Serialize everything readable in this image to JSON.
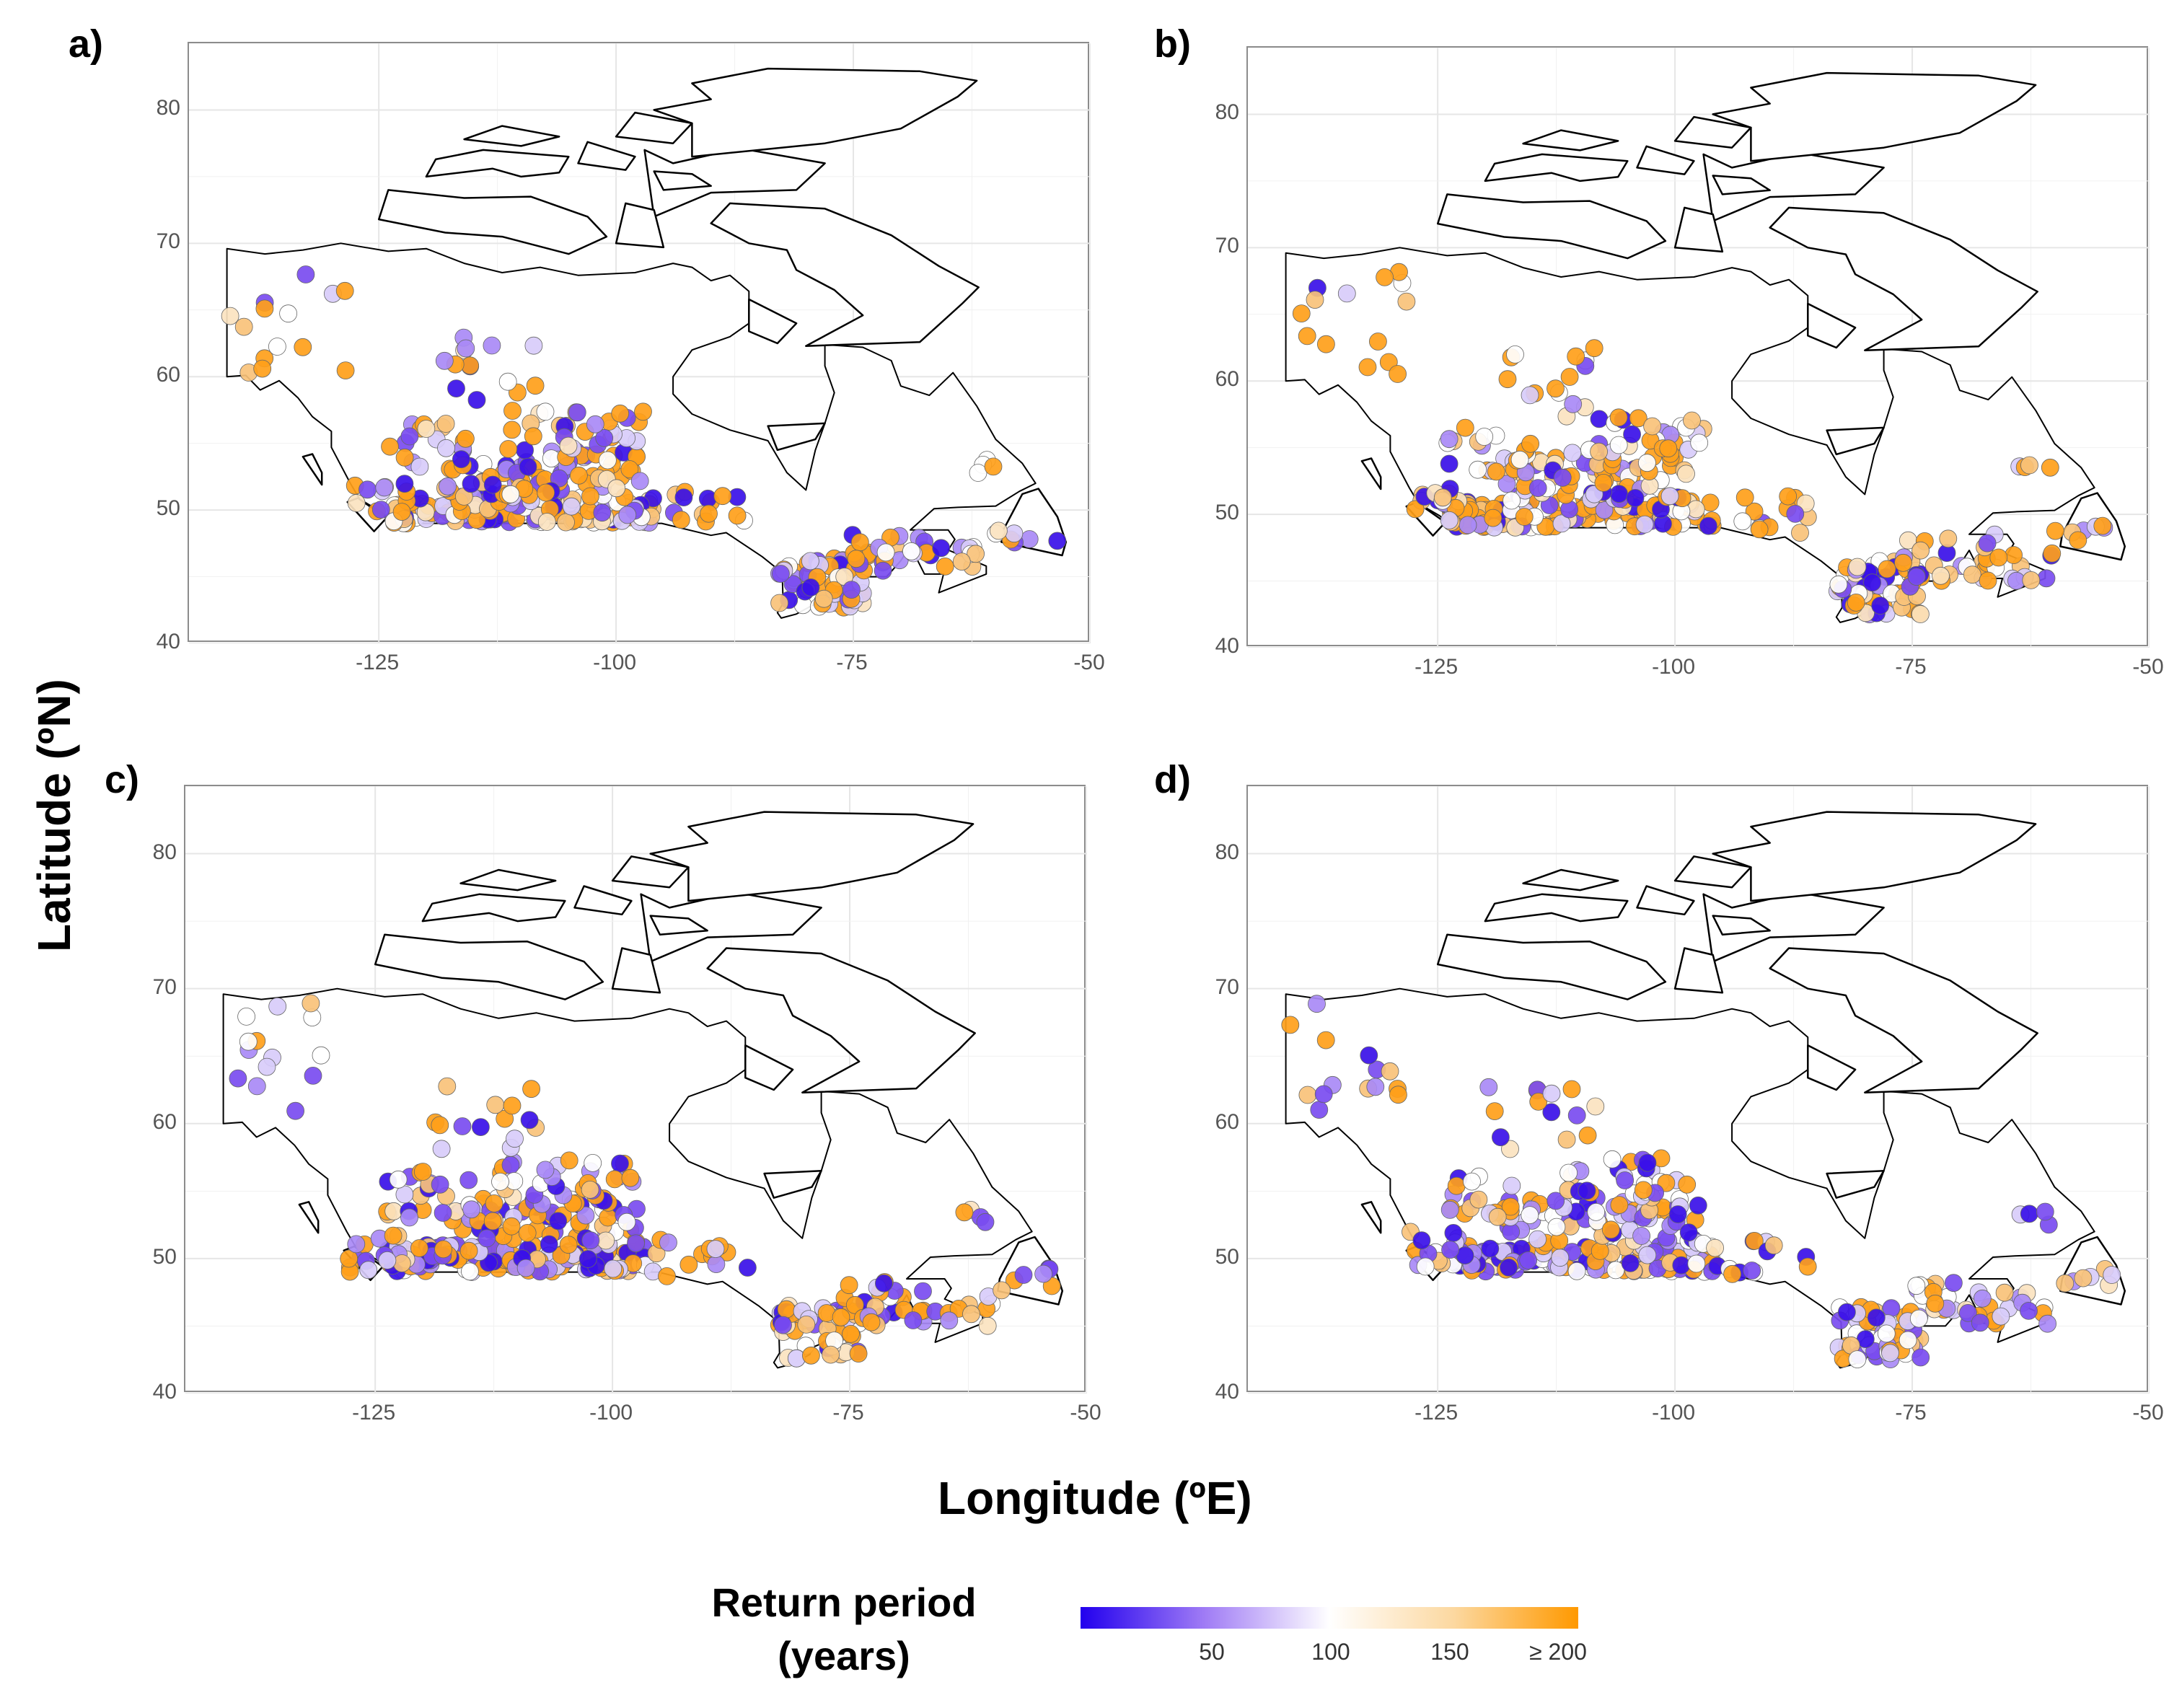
{
  "axes": {
    "y_title": "Latitude (ºN)",
    "x_title": "Longitude (ºE)",
    "lat_ticks": [
      "80",
      "70",
      "60",
      "50",
      "40"
    ],
    "lon_ticks": [
      "-125",
      "-100",
      "-75",
      "-50"
    ]
  },
  "panels": [
    {
      "letter": "a)",
      "bias": 0.6,
      "seed": 11
    },
    {
      "letter": "b)",
      "bias": 0.68,
      "seed": 23
    },
    {
      "letter": "c)",
      "bias": 0.58,
      "seed": 37
    },
    {
      "letter": "d)",
      "bias": 0.45,
      "seed": 53
    }
  ],
  "legend": {
    "title_line1": "Return period",
    "title_line2": "(years)",
    "ticks": [
      "50",
      "100",
      "150",
      "≥ 200"
    ],
    "colors": [
      "#2200ee",
      "#a07cf5",
      "#ffffff",
      "#fcd8a0",
      "#ff9900"
    ]
  },
  "map": {
    "lon_range": [
      -145,
      -50
    ],
    "lat_range": [
      40,
      85
    ],
    "point_colors": [
      "#3a10e8",
      "#7a4cf0",
      "#a98af6",
      "#d8ccfa",
      "#ffffff",
      "#fbe3c0",
      "#f9c27a",
      "#ff9f1a"
    ]
  }
}
